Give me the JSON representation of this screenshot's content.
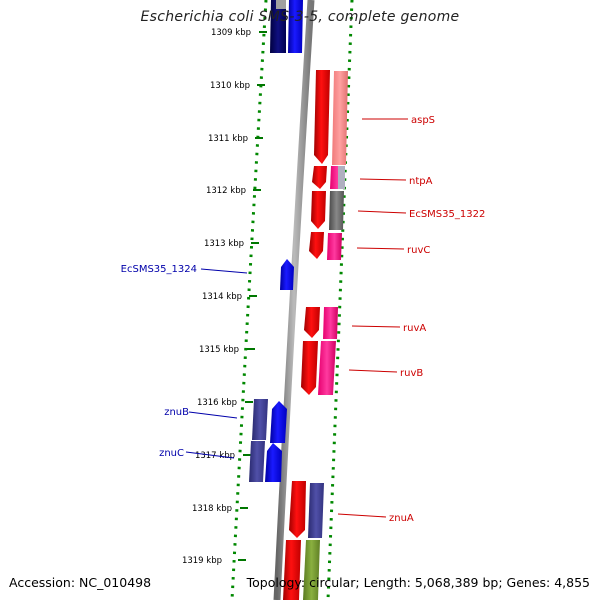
{
  "map": {
    "title": "Escherichia coli SMS-3-5, complete genome",
    "ticks": [
      "1309 kbp",
      "1310 kbp",
      "1311 kbp",
      "1312 kbp",
      "1313 kbp",
      "1314 kbp",
      "1315 kbp",
      "1316 kbp",
      "1317 kbp",
      "1318 kbp",
      "1319 kbp"
    ],
    "genes": [
      {
        "label": "aspS",
        "strand": "forward"
      },
      {
        "label": "ntpA",
        "strand": "forward"
      },
      {
        "label": "EcSMS35_1322",
        "strand": "forward"
      },
      {
        "label": "ruvC",
        "strand": "forward"
      },
      {
        "label": "EcSMS35_1324",
        "strand": "reverse"
      },
      {
        "label": "ruvA",
        "strand": "forward"
      },
      {
        "label": "ruvB",
        "strand": "forward"
      },
      {
        "label": "znuB",
        "strand": "reverse"
      },
      {
        "label": "znuC",
        "strand": "reverse"
      },
      {
        "label": "znuA",
        "strand": "forward"
      }
    ]
  },
  "footer": {
    "accession": "Accession: NC_010498",
    "summary": "Topology: circular; Length: 5,068,389 bp; Genes: 4,855"
  },
  "colors": {
    "forward_label": "#cc0000",
    "reverse_label": "#0000aa",
    "cds_forward": "#ff0000",
    "cds_reverse": "#0000ff",
    "backbone": "#888888",
    "gc_skew": "#008800"
  }
}
